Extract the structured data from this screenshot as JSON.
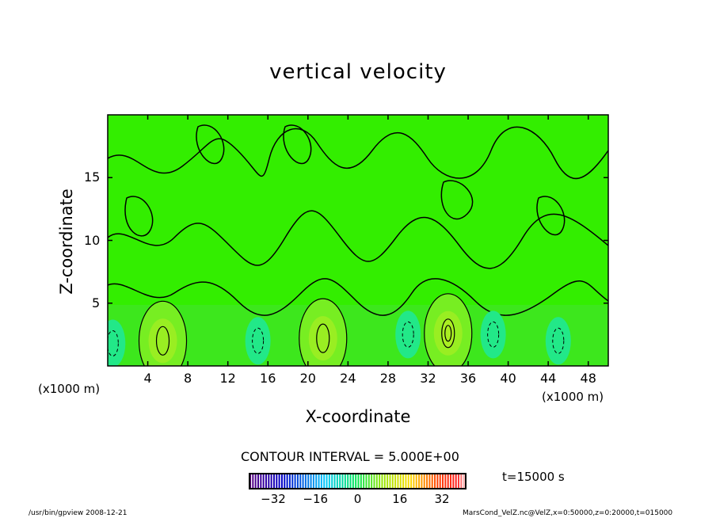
{
  "chart_data": {
    "type": "contour",
    "title": "vertical velocity",
    "xlabel": "X-coordinate",
    "ylabel": "Z-coordinate",
    "x_unit_label": "(x1000 m)",
    "x_unit_label_right": "(x1000 m)",
    "xlim": [
      0,
      50
    ],
    "ylim": [
      0,
      20
    ],
    "xticks": [
      4,
      8,
      12,
      16,
      20,
      24,
      28,
      32,
      36,
      40,
      44,
      48
    ],
    "yticks": [
      5,
      10,
      15
    ],
    "contour_interval_label": "CONTOUR INTERVAL = 5.000E+00",
    "time_label": "t=15000 s",
    "colorbar": {
      "min": -41,
      "max": 41,
      "ticks": [
        -32,
        -16,
        0,
        16,
        32
      ]
    },
    "updrafts": [
      {
        "x": 5.5,
        "z": 2.0,
        "value": 10
      },
      {
        "x": 21.5,
        "z": 2.2,
        "value": 10
      },
      {
        "x": 34.0,
        "z": 2.6,
        "value": 15
      }
    ],
    "downdrafts": [
      {
        "x": 0.5,
        "z": 1.8,
        "value": -5
      },
      {
        "x": 15.0,
        "z": 2.0,
        "value": -5
      },
      {
        "x": 30.0,
        "z": 2.5,
        "value": -5
      },
      {
        "x": 38.5,
        "z": 2.5,
        "value": -5
      },
      {
        "x": 45.0,
        "z": 2.0,
        "value": -5
      }
    ]
  },
  "footer": {
    "left": "/usr/bin/gpview   2008-12-21",
    "right": "MarsCond_VelZ.nc@VelZ,x=0:50000,z=0:20000,t=015000"
  }
}
